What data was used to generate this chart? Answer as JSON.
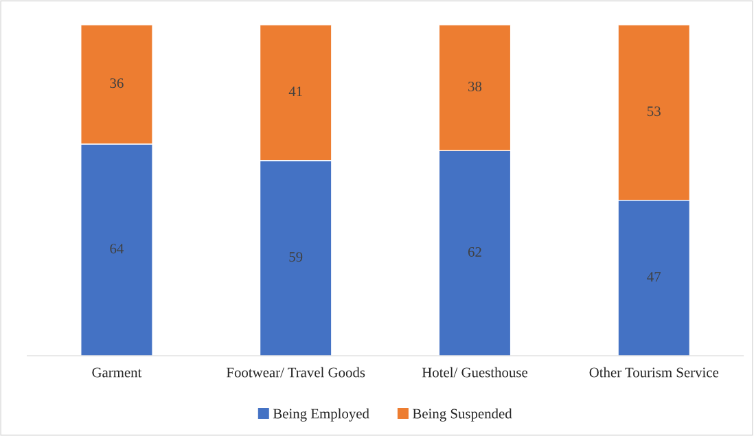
{
  "chart_data": {
    "type": "bar",
    "stacked": true,
    "categories": [
      "Garment",
      "Footwear/ Travel Goods",
      "Hotel/ Guesthouse",
      "Other Tourism Service"
    ],
    "series": [
      {
        "name": "Being Employed",
        "color": "#4472c4",
        "values": [
          64,
          59,
          62,
          47
        ]
      },
      {
        "name": "Being Suspended",
        "color": "#ed7d31",
        "values": [
          36,
          41,
          38,
          53
        ]
      }
    ],
    "ylim": [
      0,
      100
    ],
    "data_labels": true,
    "legend": "bottom",
    "tick_labels": "x"
  }
}
